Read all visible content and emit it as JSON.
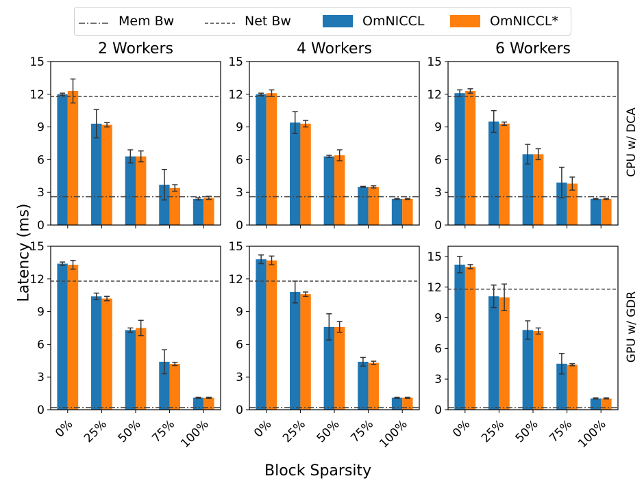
{
  "legend": {
    "mem_bw": "Mem Bw",
    "net_bw": "Net Bw",
    "omniccl": "OmNICCL",
    "omniccl_star": "OmNICCL*"
  },
  "colors": {
    "omniccl": "#1f77b4",
    "omniccl_star": "#ff7f0e",
    "ref_line": "#444444",
    "errorbar": "#333333"
  },
  "axes": {
    "xlabel": "Block Sparsity",
    "ylabel": "Latency (ms)",
    "col_titles": [
      "2 Workers",
      "4 Workers",
      "6 Workers"
    ],
    "row_labels": [
      "CPU w/ DCA",
      "GPU w/ GDR"
    ]
  },
  "chart_data": [
    {
      "type": "bar",
      "panel": "CPU w/ DCA - 2 Workers",
      "categories": [
        "0%",
        "25%",
        "50%",
        "75%",
        "100%"
      ],
      "ylim": [
        0,
        15
      ],
      "yticks": [
        0,
        3,
        6,
        9,
        12,
        15
      ],
      "mem_bw": 2.6,
      "net_bw": 11.8,
      "series": [
        {
          "name": "OmNICCL",
          "values": [
            12.0,
            9.3,
            6.3,
            3.7,
            2.4
          ],
          "err": [
            0.1,
            1.3,
            0.6,
            1.4,
            0.1
          ]
        },
        {
          "name": "OmNICCL*",
          "values": [
            12.3,
            9.2,
            6.3,
            3.4,
            2.5
          ],
          "err": [
            1.1,
            0.2,
            0.5,
            0.3,
            0.15
          ]
        }
      ]
    },
    {
      "type": "bar",
      "panel": "CPU w/ DCA - 4 Workers",
      "categories": [
        "0%",
        "25%",
        "50%",
        "75%",
        "100%"
      ],
      "ylim": [
        0,
        15
      ],
      "yticks": [
        0,
        3,
        6,
        9,
        12,
        15
      ],
      "mem_bw": 2.6,
      "net_bw": 11.8,
      "series": [
        {
          "name": "OmNICCL",
          "values": [
            12.0,
            9.4,
            6.3,
            3.5,
            2.4
          ],
          "err": [
            0.1,
            1.0,
            0.1,
            0.05,
            0.05
          ]
        },
        {
          "name": "OmNICCL*",
          "values": [
            12.1,
            9.3,
            6.4,
            3.5,
            2.4
          ],
          "err": [
            0.3,
            0.3,
            0.5,
            0.1,
            0.05
          ]
        }
      ]
    },
    {
      "type": "bar",
      "panel": "CPU w/ DCA - 6 Workers",
      "categories": [
        "0%",
        "25%",
        "50%",
        "75%",
        "100%"
      ],
      "ylim": [
        0,
        15
      ],
      "yticks": [
        0,
        3,
        6,
        9,
        12,
        15
      ],
      "mem_bw": 2.6,
      "net_bw": 11.8,
      "series": [
        {
          "name": "OmNICCL",
          "values": [
            12.1,
            9.5,
            6.5,
            3.9,
            2.4
          ],
          "err": [
            0.3,
            1.0,
            0.9,
            1.4,
            0.05
          ]
        },
        {
          "name": "OmNICCL*",
          "values": [
            12.3,
            9.3,
            6.5,
            3.8,
            2.4
          ],
          "err": [
            0.2,
            0.15,
            0.5,
            0.6,
            0.05
          ]
        }
      ]
    },
    {
      "type": "bar",
      "panel": "GPU w/ GDR - 2 Workers",
      "categories": [
        "0%",
        "25%",
        "50%",
        "75%",
        "100%"
      ],
      "ylim": [
        0,
        15
      ],
      "yticks": [
        0,
        3,
        6,
        9,
        12,
        15
      ],
      "mem_bw": 0.2,
      "net_bw": 11.8,
      "series": [
        {
          "name": "OmNICCL",
          "values": [
            13.4,
            10.4,
            7.3,
            4.4,
            1.1
          ],
          "err": [
            0.15,
            0.3,
            0.2,
            1.1,
            0.05
          ]
        },
        {
          "name": "OmNICCL*",
          "values": [
            13.3,
            10.2,
            7.5,
            4.2,
            1.1
          ],
          "err": [
            0.4,
            0.2,
            0.7,
            0.15,
            0.05
          ]
        }
      ]
    },
    {
      "type": "bar",
      "panel": "GPU w/ GDR - 4 Workers",
      "categories": [
        "0%",
        "25%",
        "50%",
        "75%",
        "100%"
      ],
      "ylim": [
        0,
        15
      ],
      "yticks": [
        0,
        3,
        6,
        9,
        12,
        15
      ],
      "mem_bw": 0.2,
      "net_bw": 11.8,
      "series": [
        {
          "name": "OmNICCL",
          "values": [
            13.8,
            10.8,
            7.6,
            4.4,
            1.1
          ],
          "err": [
            0.4,
            1.0,
            1.2,
            0.4,
            0.05
          ]
        },
        {
          "name": "OmNICCL*",
          "values": [
            13.7,
            10.6,
            7.6,
            4.3,
            1.1
          ],
          "err": [
            0.4,
            0.2,
            0.5,
            0.15,
            0.05
          ]
        }
      ]
    },
    {
      "type": "bar",
      "panel": "GPU w/ GDR - 6 Workers",
      "categories": [
        "0%",
        "25%",
        "50%",
        "75%",
        "100%"
      ],
      "ylim": [
        0,
        16
      ],
      "yticks": [
        0,
        3,
        6,
        9,
        12,
        15
      ],
      "mem_bw": 0.2,
      "net_bw": 11.8,
      "series": [
        {
          "name": "OmNICCL",
          "values": [
            14.2,
            11.1,
            7.8,
            4.5,
            1.1
          ],
          "err": [
            0.8,
            1.1,
            0.9,
            1.0,
            0.05
          ]
        },
        {
          "name": "OmNICCL*",
          "values": [
            14.0,
            11.0,
            7.7,
            4.4,
            1.1
          ],
          "err": [
            0.2,
            1.3,
            0.3,
            0.1,
            0.05
          ]
        }
      ]
    }
  ]
}
